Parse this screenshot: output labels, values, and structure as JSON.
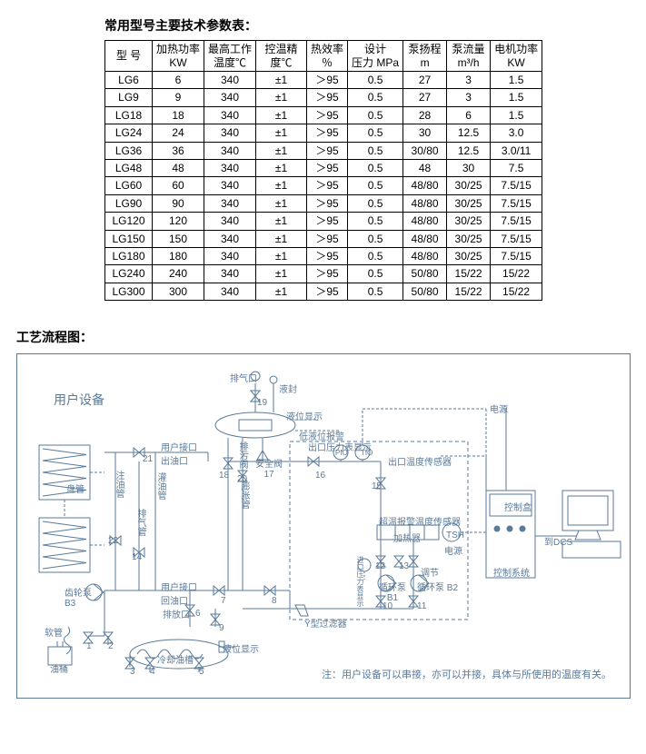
{
  "table": {
    "title": "常用型号主要技术参数表：",
    "headers": [
      "型 号",
      "加热功率\nKW",
      "最高工作\n温度℃",
      "控温精\n度℃",
      "热效率\n％",
      "设计\n压力 MPa",
      "泵扬程\nm",
      "泵流量\nm³/h",
      "电机功率\nKW"
    ],
    "rows": [
      [
        "LG6",
        "6",
        "340",
        "±1",
        "＞95",
        "0.5",
        "27",
        "3",
        "1.5"
      ],
      [
        "LG9",
        "9",
        "340",
        "±1",
        "＞95",
        "0.5",
        "27",
        "3",
        "1.5"
      ],
      [
        "LG18",
        "18",
        "340",
        "±1",
        "＞95",
        "0.5",
        "28",
        "6",
        "1.5"
      ],
      [
        "LG24",
        "24",
        "340",
        "±1",
        "＞95",
        "0.5",
        "30",
        "12.5",
        "3.0"
      ],
      [
        "LG36",
        "36",
        "340",
        "±1",
        "＞95",
        "0.5",
        "30/80",
        "12.5",
        "3.0/11"
      ],
      [
        "LG48",
        "48",
        "340",
        "±1",
        "＞95",
        "0.5",
        "48",
        "30",
        "7.5"
      ],
      [
        "LG60",
        "60",
        "340",
        "±1",
        "＞95",
        "0.5",
        "48/80",
        "30/25",
        "7.5/15"
      ],
      [
        "LG90",
        "90",
        "340",
        "±1",
        "＞95",
        "0.5",
        "48/80",
        "30/25",
        "7.5/15"
      ],
      [
        "LG120",
        "120",
        "340",
        "±1",
        "＞95",
        "0.5",
        "48/80",
        "30/25",
        "7.5/15"
      ],
      [
        "LG150",
        "150",
        "340",
        "±1",
        "＞95",
        "0.5",
        "48/80",
        "30/25",
        "7.5/15"
      ],
      [
        "LG180",
        "180",
        "340",
        "±1",
        "＞95",
        "0.5",
        "48/80",
        "30/25",
        "7.5/15"
      ],
      [
        "LG240",
        "240",
        "340",
        "±1",
        "＞95",
        "0.5",
        "50/80",
        "15/22",
        "15/22"
      ],
      [
        "LG300",
        "300",
        "340",
        "±1",
        "＞95",
        "0.5",
        "50/80",
        "15/22",
        "15/22"
      ]
    ]
  },
  "diagram": {
    "title": "工艺流程图：",
    "note": "注：用户设备可以串接，亦可以并接，具体与所使用的温度有关。",
    "stroke": "#5a7a9a",
    "labels": {
      "user_equipment": "用户设备",
      "coil": "盘管",
      "oil_inject_pipe": "注油管",
      "oil_fill_pipe": "灌油管",
      "exhaust_pipe": "排气管",
      "expansion_pipe": "膨胀管",
      "user_port_out": "用户接口\n出油口",
      "user_port_in": "用户接口\n回油口",
      "drain": "排放口",
      "gear_pump": "齿轮泵\nB3",
      "hose": "软管",
      "oil_drum": "油桶",
      "level_indicator": "液位显示",
      "level_indicator2": "液位显示",
      "low_level_alarm": "低液位报警",
      "safety_valve": "安全阀\n17",
      "vent": "排污阀",
      "out_press": "出口压力表显示",
      "out_temp_sensor": "出口温度传感器",
      "over_temp_alarm": "超温报警温度传感器",
      "heater": "加热器",
      "tsh": "TSH",
      "power": "电源",
      "power2": "电源",
      "control_box": "控制盒",
      "control_system": "控制系统",
      "to_dcs": "到DCS",
      "y_filter": "Y型过滤器",
      "pump_b1": "循环泵\nB1",
      "pump_b2": "循环泵 B2",
      "valve_fill": "液封",
      "valve_top": "排气口",
      "throttle": "调节",
      "cooling_tank": "冷却油槽",
      "v1": "1",
      "v2": "2",
      "v3": "3",
      "v4": "4",
      "v5": "5",
      "v6": "6",
      "v7": "7",
      "v8": "8",
      "v9": "9",
      "v10": "10",
      "v11": "11",
      "v12": "12",
      "v13": "13",
      "v14": "14",
      "v15": "15",
      "v16": "16",
      "v18": "18",
      "v19": "19",
      "v20": "20",
      "v21": "21",
      "v22": "22",
      "pio": "PIO",
      "tio": "TIO"
    }
  }
}
